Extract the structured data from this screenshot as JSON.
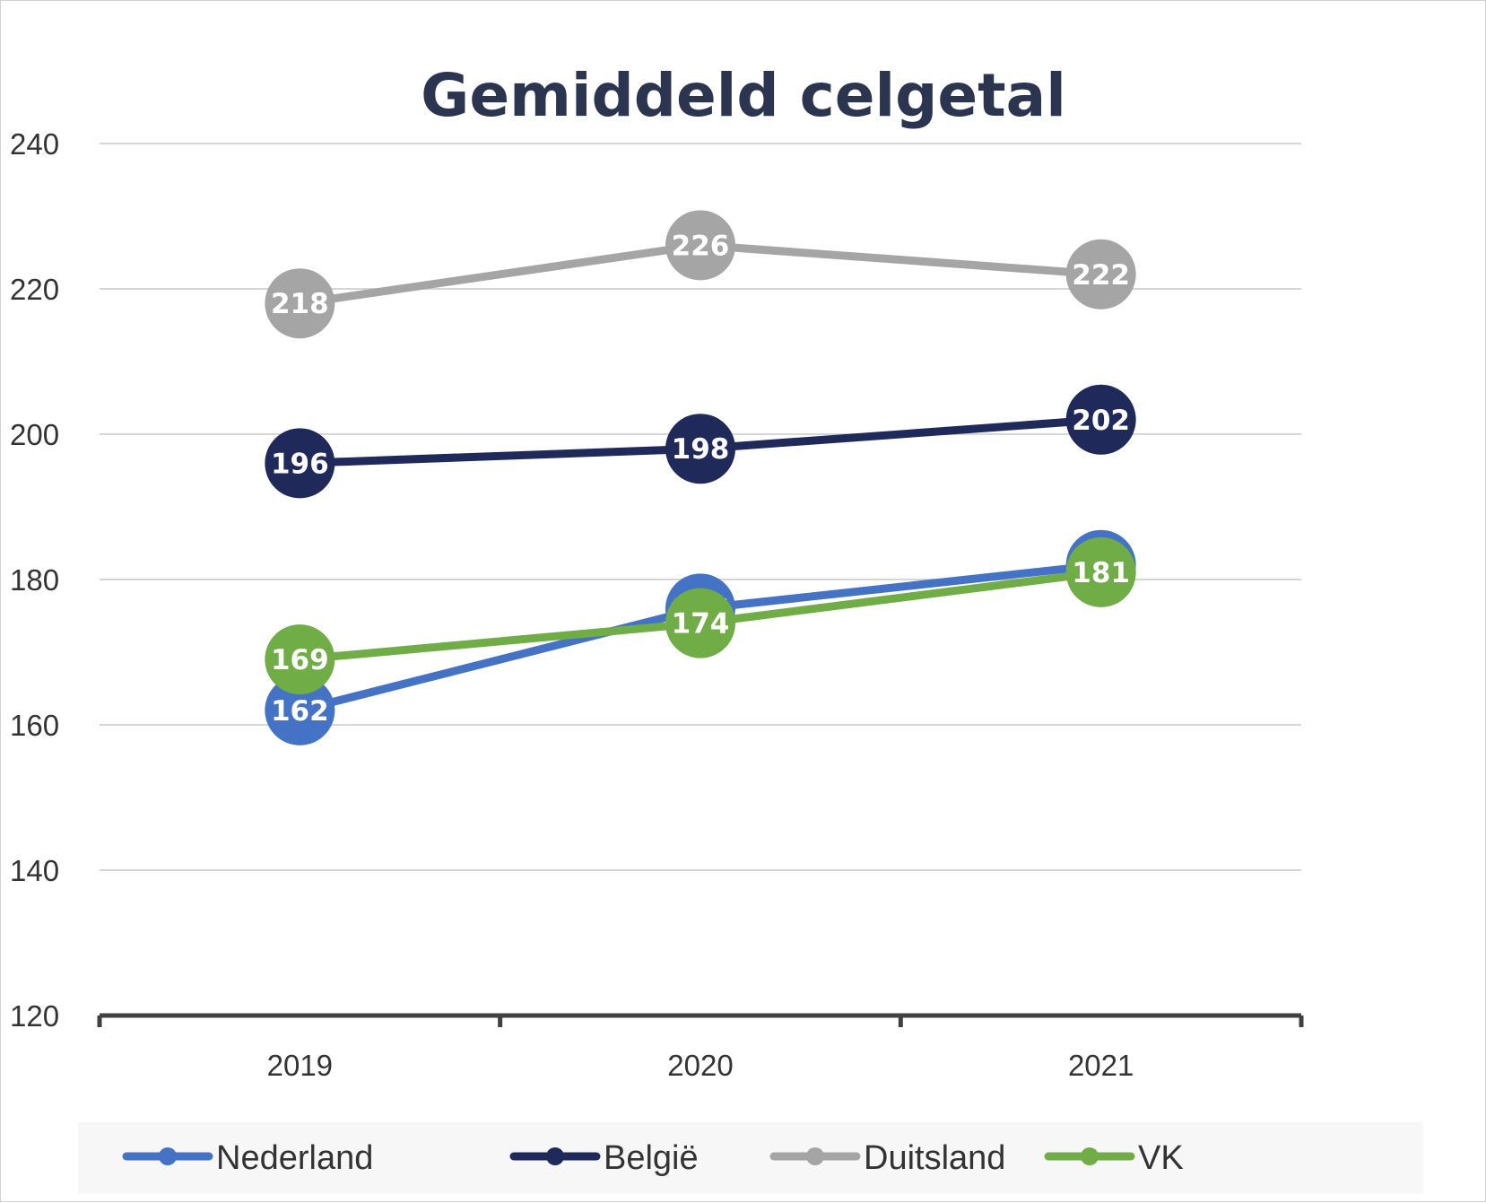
{
  "chart_data": {
    "type": "line",
    "title": "Gemiddeld celgetal",
    "xlabel": "",
    "ylabel": "",
    "categories": [
      "2019",
      "2020",
      "2021"
    ],
    "ylim": [
      120,
      240
    ],
    "yticks": [
      120,
      140,
      160,
      180,
      200,
      220,
      240
    ],
    "grid": true,
    "legend": "bottom",
    "series": [
      {
        "name": "Nederland",
        "color": "#4472c4",
        "values": [
          162,
          176,
          182
        ]
      },
      {
        "name": "België",
        "color": "#1f2a5a",
        "values": [
          196,
          198,
          202
        ]
      },
      {
        "name": "Duitsland",
        "color": "#a5a5a5",
        "values": [
          218,
          226,
          222
        ]
      },
      {
        "name": "VK",
        "color": "#70ad47",
        "values": [
          169,
          174,
          181
        ]
      }
    ]
  }
}
